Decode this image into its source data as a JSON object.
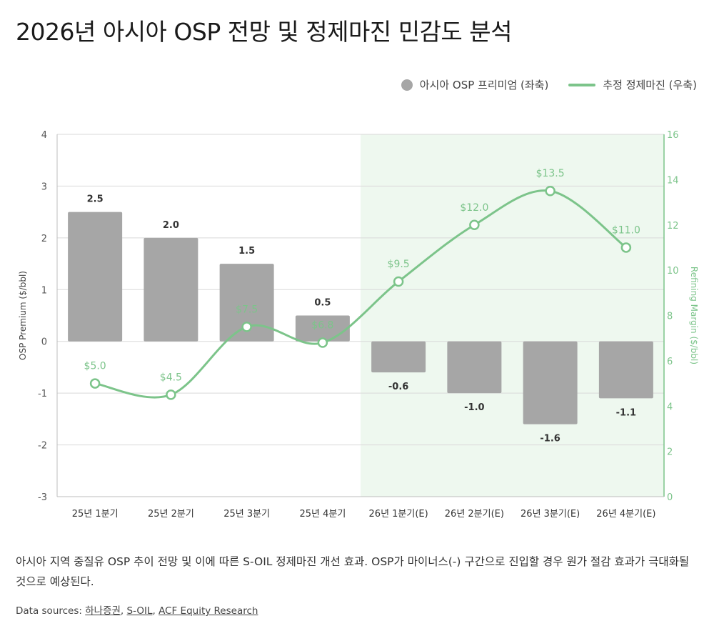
{
  "title": "2026년 아시아 OSP 전망 및 정제마진 민감도 분석",
  "legend": {
    "bar_label": "아시아 OSP 프리미엄 (좌축)",
    "line_label": "추정 정제마진 (우축)"
  },
  "colors": {
    "bar": "#a6a6a6",
    "line": "#7cc48a",
    "highlight": "#eef8ef",
    "grid": "#d9d9d9"
  },
  "chart_data": {
    "type": "bar",
    "categories": [
      "25년 1분기",
      "25년 2분기",
      "25년 3분기",
      "25년 4분기",
      "26년 1분기(E)",
      "26년 2분기(E)",
      "26년 3분기(E)",
      "26년 4분기(E)"
    ],
    "series": [
      {
        "name": "아시아 OSP 프리미엄 (좌축)",
        "type": "bar",
        "axis": "left",
        "values": [
          2.5,
          2.0,
          1.5,
          0.5,
          -0.6,
          -1.0,
          -1.6,
          -1.1
        ],
        "labels": [
          "2.5",
          "2.0",
          "1.5",
          "0.5",
          "-0.6",
          "-1.0",
          "-1.6",
          "-1.1"
        ]
      },
      {
        "name": "추정 정제마진 (우축)",
        "type": "line",
        "axis": "right",
        "values": [
          5.0,
          4.5,
          7.5,
          6.8,
          9.5,
          12.0,
          13.5,
          11.0
        ],
        "labels": [
          "$5.0",
          "$4.5",
          "$7.5",
          "$6.8",
          "$9.5",
          "$12.0",
          "$13.5",
          "$11.0"
        ]
      }
    ],
    "ylabel": "OSP Premium ($/bbl)",
    "y2label": "Refining Margin ($/bbl)",
    "ylim": [
      -3,
      4
    ],
    "y2lim": [
      0,
      16
    ],
    "yticks": [
      "-3",
      "-2",
      "-1",
      "0",
      "1",
      "2",
      "3",
      "4"
    ],
    "y2ticks": [
      "0",
      "2",
      "4",
      "6",
      "8",
      "10",
      "12",
      "14",
      "16"
    ],
    "highlight_from_category": 4,
    "grid": true,
    "legend_position": "top-right"
  },
  "caption": "아시아 지역 중질유 OSP 추이 전망 및 이에 따른 S-OIL 정제마진 개선 효과. OSP가 마이너스(-) 구간으로 진입할 경우 원가 절감 효과가 극대화될 것으로 예상된다.",
  "sources": {
    "prefix": "Data sources: ",
    "items": [
      "하나증권",
      "S-OIL",
      "ACF Equity Research"
    ],
    "separator": ", "
  }
}
